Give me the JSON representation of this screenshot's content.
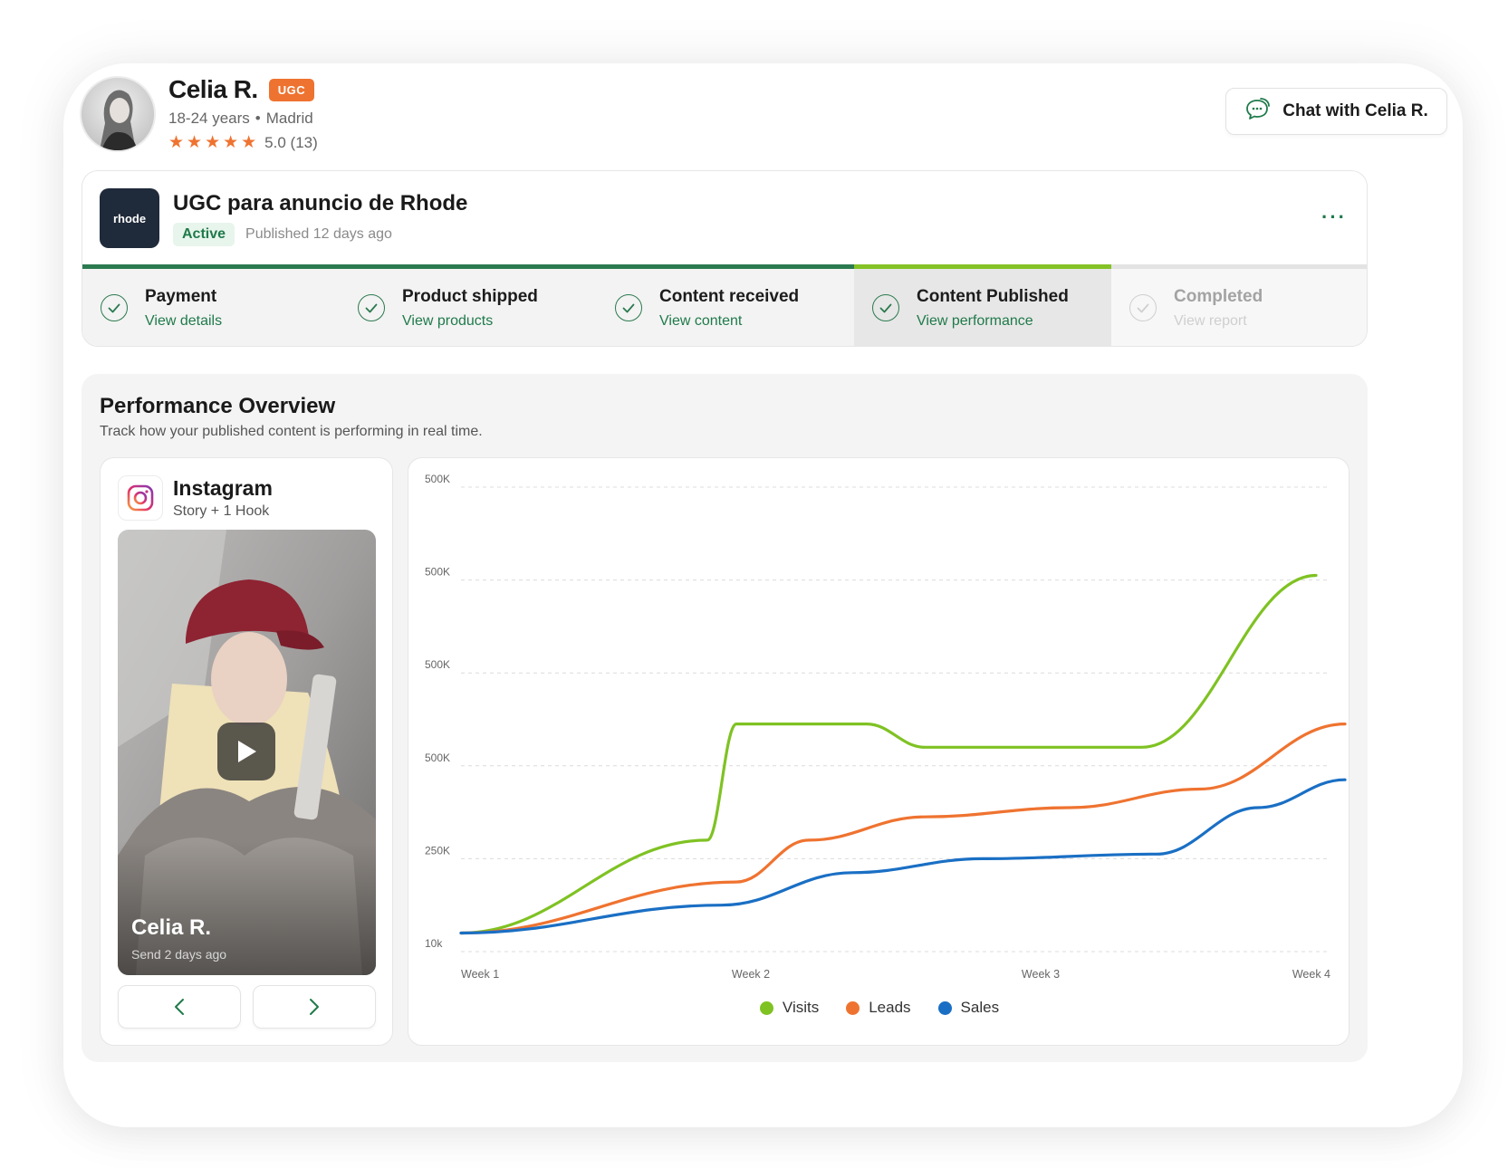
{
  "profile": {
    "name": "Celia R.",
    "badge": "UGC",
    "age_range": "18-24 years",
    "location": "Madrid",
    "rating": "5.0",
    "reviews": "(13)",
    "stars": "★★★★★"
  },
  "chat_button": {
    "label": "Chat with Celia R."
  },
  "campaign": {
    "brand_logo_text": "rhode",
    "title": "UGC para anuncio de Rhode",
    "status": "Active",
    "published": "Published 12 days ago",
    "more_label": "···"
  },
  "steps": [
    {
      "title": "Payment",
      "link": "View details",
      "state": "done"
    },
    {
      "title": "Product shipped",
      "link": "View products",
      "state": "done"
    },
    {
      "title": "Content received",
      "link": "View content",
      "state": "done"
    },
    {
      "title": "Content Published",
      "link": "View performance",
      "state": "current"
    },
    {
      "title": "Completed",
      "link": "View report",
      "state": "pending"
    }
  ],
  "performance": {
    "title": "Performance Overview",
    "subtitle": "Track how your published content is performing in real time."
  },
  "content_card": {
    "platform": "Instagram",
    "format": "Story + 1 Hook",
    "creator": "Celia R.",
    "sent": "Send 2 days ago",
    "icons": {
      "platform": "instagram-icon",
      "play": "play-icon",
      "prev": "chevron-left-icon",
      "next": "chevron-right-icon"
    }
  },
  "colors": {
    "accent_green": "#1f7a4a",
    "orange": "#ef7330",
    "visits": "#7fc223",
    "leads": "#ef7330",
    "sales": "#1a6fc4"
  },
  "chart_data": {
    "type": "line",
    "title": "",
    "xlabel": "",
    "ylabel": "",
    "x": [
      "Week 1",
      "Week 2",
      "Week 3",
      "Week 4"
    ],
    "y_tick_labels": [
      "10k",
      "250K",
      "500K",
      "500K",
      "500K",
      "500K"
    ],
    "y_tick_positions": [
      0,
      1,
      2,
      3,
      4,
      5
    ],
    "ylim": [
      0,
      5
    ],
    "grid": true,
    "legend_position": "bottom-center",
    "series": [
      {
        "name": "Visits",
        "color": "#7fc223",
        "points": [
          [
            0,
            0.2
          ],
          [
            0.85,
            1.2
          ],
          [
            0.95,
            2.45
          ],
          [
            1.4,
            2.45
          ],
          [
            1.6,
            2.2
          ],
          [
            2.35,
            2.2
          ],
          [
            2.95,
            4.05
          ]
        ]
      },
      {
        "name": "Leads",
        "color": "#ef7330",
        "points": [
          [
            0,
            0.2
          ],
          [
            0.95,
            0.75
          ],
          [
            1.2,
            1.2
          ],
          [
            1.6,
            1.45
          ],
          [
            2.1,
            1.55
          ],
          [
            2.55,
            1.75
          ],
          [
            3.05,
            2.45
          ]
        ]
      },
      {
        "name": "Sales",
        "color": "#1a6fc4",
        "points": [
          [
            0,
            0.2
          ],
          [
            0.9,
            0.5
          ],
          [
            1.35,
            0.85
          ],
          [
            1.8,
            1.0
          ],
          [
            2.4,
            1.05
          ],
          [
            2.75,
            1.55
          ],
          [
            3.05,
            1.85
          ]
        ]
      }
    ]
  }
}
